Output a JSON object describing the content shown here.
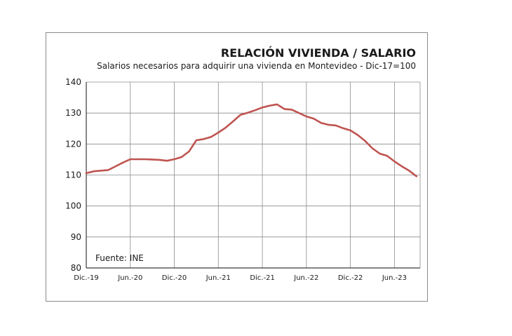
{
  "chart_data": {
    "type": "line",
    "title": "RELACIÓN VIVIENDA / SALARIO",
    "subtitle": "Salarios necesarios para adquirir una vivienda  en Montevideo - Dic-17=100",
    "source": "Fuente: INE",
    "xlabel": "",
    "ylabel": "",
    "ylim": [
      80,
      140
    ],
    "yticks": [
      80,
      90,
      100,
      110,
      120,
      130,
      140
    ],
    "grid": true,
    "legend": "none",
    "x_tick_labels": [
      "Dic.-19",
      "Jun.-20",
      "Dic.-20",
      "Jun.-21",
      "Dic.-21",
      "Jun.-22",
      "Dic.-22",
      "Jun.-23"
    ],
    "x_tick_months": [
      0,
      6,
      12,
      18,
      24,
      30,
      36,
      42
    ],
    "colors": {
      "line": "#bf5450",
      "grid": "#8c8c8c",
      "axis": "#3a3a3a"
    },
    "series": [
      {
        "name": "Relación vivienda / salario",
        "x": [
          0,
          1,
          2,
          3,
          4,
          5,
          6,
          7,
          8,
          9,
          10,
          11,
          12,
          13,
          14,
          15,
          16,
          17,
          18,
          19,
          20,
          21,
          22,
          23,
          24,
          25,
          26,
          27,
          28,
          29,
          30,
          31,
          32,
          33,
          34,
          35,
          36,
          37,
          38,
          39,
          40,
          41,
          42,
          43,
          44,
          45
        ],
        "values": [
          110.6,
          111.2,
          111.4,
          111.6,
          112.8,
          114.0,
          115.1,
          115.1,
          115.1,
          115.0,
          114.9,
          114.6,
          115.1,
          115.8,
          117.6,
          121.2,
          121.6,
          122.3,
          123.7,
          125.3,
          127.3,
          129.4,
          130.1,
          130.9,
          131.8,
          132.4,
          132.8,
          131.3,
          131.1,
          130.0,
          128.9,
          128.2,
          126.8,
          126.2,
          126.0,
          125.1,
          124.4,
          122.9,
          121.0,
          118.6,
          116.9,
          116.2,
          114.4,
          112.8,
          111.4,
          109.6
        ]
      }
    ]
  }
}
